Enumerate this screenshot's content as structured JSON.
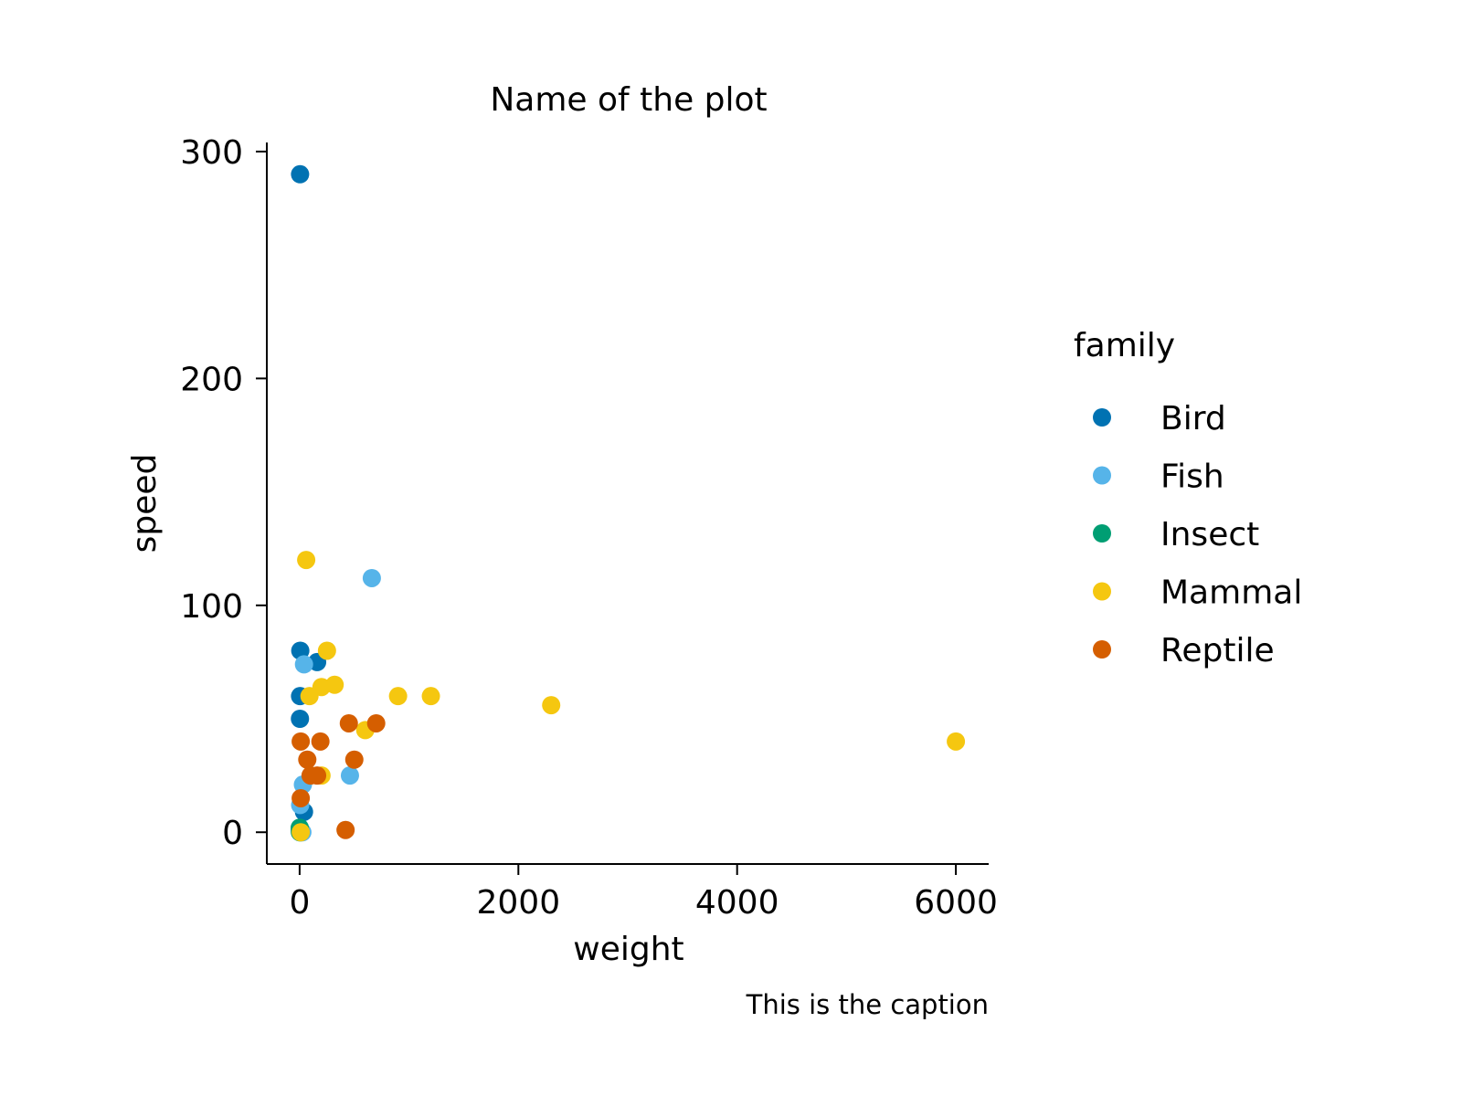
{
  "chart_data": {
    "type": "scatter",
    "title": "Name of the plot",
    "caption": "This is the caption",
    "xlabel": "weight",
    "ylabel": "speed",
    "xlim": [
      -300,
      6300
    ],
    "ylim": [
      -14,
      304
    ],
    "x_ticks": [
      0,
      2000,
      4000,
      6000
    ],
    "x_tick_labels": [
      "0",
      "2000",
      "4000",
      "6000"
    ],
    "y_ticks": [
      0,
      100,
      200,
      300
    ],
    "y_tick_labels": [
      "0",
      "100",
      "200",
      "300"
    ],
    "grid": false,
    "legend": {
      "title": "family",
      "placement": "right"
    },
    "series": [
      {
        "name": "Bird",
        "color": "#0072B2",
        "points": [
          [
            4,
            290
          ],
          [
            6,
            80
          ],
          [
            4,
            60
          ],
          [
            3,
            50
          ],
          [
            160,
            75
          ],
          [
            40,
            9
          ],
          [
            2,
            1
          ]
        ]
      },
      {
        "name": "Fish",
        "color": "#56B4E9",
        "points": [
          [
            660,
            112
          ],
          [
            40,
            74
          ],
          [
            460,
            25
          ],
          [
            30,
            21
          ],
          [
            5,
            12
          ],
          [
            25,
            0
          ],
          [
            10,
            0
          ]
        ]
      },
      {
        "name": "Insect",
        "color": "#009E73",
        "points": [
          [
            1,
            2
          ],
          [
            2,
            0
          ],
          [
            3,
            1
          ]
        ]
      },
      {
        "name": "Mammal",
        "color": "#F5C710",
        "points": [
          [
            60,
            120
          ],
          [
            250,
            80
          ],
          [
            320,
            65
          ],
          [
            200,
            64
          ],
          [
            90,
            60
          ],
          [
            900,
            60
          ],
          [
            1200,
            60
          ],
          [
            2300,
            56
          ],
          [
            600,
            45
          ],
          [
            200,
            25
          ],
          [
            6000,
            40
          ],
          [
            10,
            0
          ]
        ]
      },
      {
        "name": "Reptile",
        "color": "#D55E00",
        "points": [
          [
            450,
            48
          ],
          [
            700,
            48
          ],
          [
            10,
            40
          ],
          [
            190,
            40
          ],
          [
            70,
            32
          ],
          [
            500,
            32
          ],
          [
            100,
            25
          ],
          [
            160,
            25
          ],
          [
            10,
            15
          ],
          [
            420,
            1
          ]
        ]
      }
    ]
  }
}
